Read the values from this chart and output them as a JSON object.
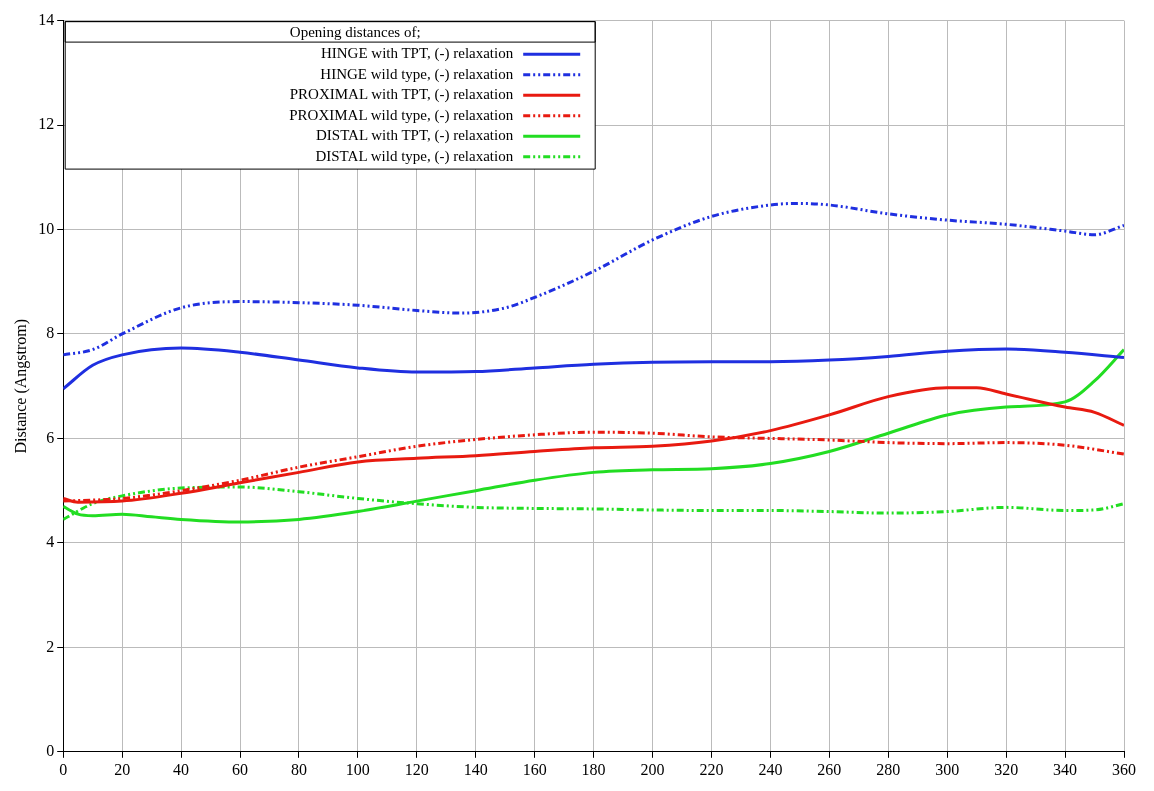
{
  "chart_data": {
    "type": "line",
    "ylabel": "Distance (Angstrom)",
    "legend_title": "Opening distances of;",
    "xlim": [
      0,
      360
    ],
    "xticks": [
      0,
      20,
      40,
      60,
      80,
      100,
      120,
      140,
      160,
      180,
      200,
      220,
      240,
      260,
      280,
      300,
      320,
      340,
      360
    ],
    "ylim": [
      0,
      14
    ],
    "yticks": [
      0,
      2,
      4,
      6,
      8,
      10,
      12,
      14
    ],
    "grid": true,
    "legend": "top left",
    "marker": "none",
    "series": [
      {
        "name": "HINGE with TPT, (-) relaxation",
        "color": "#1f2fe0",
        "line_style": "solid",
        "x": [
          0,
          10,
          20,
          40,
          60,
          80,
          100,
          120,
          140,
          160,
          180,
          200,
          220,
          240,
          260,
          280,
          300,
          320,
          340,
          360
        ],
        "values": [
          6.95,
          7.4,
          7.6,
          7.73,
          7.65,
          7.5,
          7.35,
          7.27,
          7.28,
          7.35,
          7.42,
          7.46,
          7.47,
          7.47,
          7.5,
          7.57,
          7.67,
          7.71,
          7.65,
          7.55
        ]
      },
      {
        "name": "HINGE wild type, (-) relaxation",
        "color": "#1f2fe0",
        "line_style": "dashed",
        "x": [
          0,
          10,
          20,
          40,
          60,
          80,
          100,
          120,
          135,
          150,
          160,
          180,
          200,
          220,
          240,
          250,
          260,
          280,
          300,
          320,
          340,
          350,
          360
        ],
        "values": [
          7.6,
          7.7,
          8.0,
          8.5,
          8.62,
          8.6,
          8.55,
          8.45,
          8.4,
          8.5,
          8.7,
          9.2,
          9.8,
          10.25,
          10.47,
          10.5,
          10.47,
          10.3,
          10.18,
          10.1,
          9.97,
          9.9,
          10.08
        ]
      },
      {
        "name": "PROXIMAL with TPT, (-) relaxation",
        "color": "#e81a10",
        "line_style": "solid",
        "x": [
          0,
          5,
          20,
          40,
          60,
          80,
          100,
          120,
          140,
          160,
          180,
          200,
          220,
          240,
          260,
          280,
          300,
          310,
          320,
          340,
          350,
          360
        ],
        "values": [
          4.85,
          4.78,
          4.8,
          4.95,
          5.15,
          5.35,
          5.55,
          5.62,
          5.67,
          5.75,
          5.82,
          5.85,
          5.95,
          6.15,
          6.45,
          6.8,
          6.97,
          6.97,
          6.85,
          6.6,
          6.5,
          6.25
        ]
      },
      {
        "name": "PROXIMAL wild type, (-) relaxation",
        "color": "#e81a10",
        "line_style": "dashed",
        "x": [
          0,
          20,
          40,
          60,
          80,
          100,
          120,
          140,
          160,
          180,
          200,
          220,
          240,
          260,
          280,
          300,
          320,
          340,
          360
        ],
        "values": [
          4.8,
          4.85,
          5.0,
          5.2,
          5.45,
          5.65,
          5.85,
          5.98,
          6.07,
          6.12,
          6.1,
          6.03,
          6.0,
          5.97,
          5.92,
          5.9,
          5.92,
          5.87,
          5.7
        ]
      },
      {
        "name": "DISTAL with TPT, (-) relaxation",
        "color": "#22dd22",
        "line_style": "solid",
        "x": [
          0,
          5,
          10,
          20,
          30,
          40,
          60,
          80,
          100,
          120,
          140,
          160,
          180,
          200,
          220,
          240,
          260,
          280,
          300,
          320,
          340,
          350,
          360
        ],
        "values": [
          4.7,
          4.55,
          4.52,
          4.55,
          4.5,
          4.45,
          4.4,
          4.45,
          4.6,
          4.8,
          5.0,
          5.2,
          5.35,
          5.4,
          5.42,
          5.52,
          5.75,
          6.1,
          6.45,
          6.6,
          6.7,
          7.1,
          7.7
        ]
      },
      {
        "name": "DISTAL wild type, (-) relaxation",
        "color": "#22dd22",
        "line_style": "dashed",
        "x": [
          0,
          10,
          20,
          40,
          60,
          80,
          100,
          120,
          140,
          160,
          180,
          200,
          220,
          240,
          260,
          280,
          300,
          320,
          340,
          350,
          360
        ],
        "values": [
          4.45,
          4.75,
          4.9,
          5.05,
          5.07,
          4.98,
          4.85,
          4.75,
          4.68,
          4.66,
          4.65,
          4.63,
          4.62,
          4.62,
          4.6,
          4.57,
          4.6,
          4.68,
          4.62,
          4.63,
          4.75
        ]
      }
    ]
  }
}
